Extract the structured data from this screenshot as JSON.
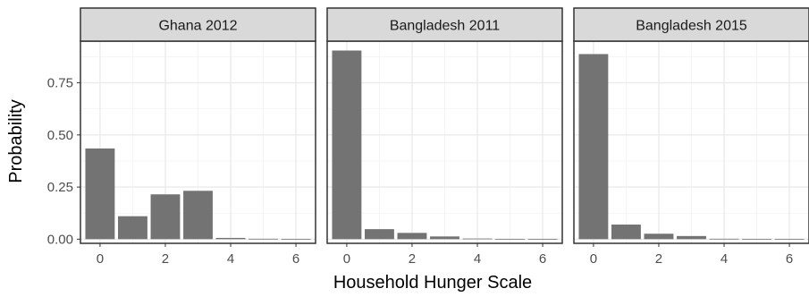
{
  "chart_data": {
    "type": "bar",
    "xlabel": "Household Hunger Scale",
    "ylabel": "Probability",
    "xlim": [
      -0.6,
      6.6
    ],
    "ylim": [
      -0.02,
      0.95
    ],
    "x_ticks": [
      0,
      2,
      4,
      6
    ],
    "x_tick_labels": [
      "0",
      "2",
      "4",
      "6"
    ],
    "y_ticks": [
      0,
      0.25,
      0.5,
      0.75
    ],
    "y_tick_labels": [
      "0.00",
      "0.25",
      "0.50",
      "0.75"
    ],
    "grid": true,
    "bar_color": "#737373",
    "categories": [
      0,
      1,
      2,
      3,
      4,
      5,
      6
    ],
    "panels": [
      {
        "title": "Ghana 2012",
        "values": [
          0.435,
          0.11,
          0.215,
          0.232,
          0.006,
          0.002,
          0.001
        ]
      },
      {
        "title": "Bangladesh 2011",
        "values": [
          0.905,
          0.048,
          0.03,
          0.013,
          0.003,
          0.001,
          0.001
        ]
      },
      {
        "title": "Bangladesh 2015",
        "values": [
          0.888,
          0.07,
          0.026,
          0.015,
          0.002,
          0.001,
          0.001
        ]
      }
    ]
  }
}
